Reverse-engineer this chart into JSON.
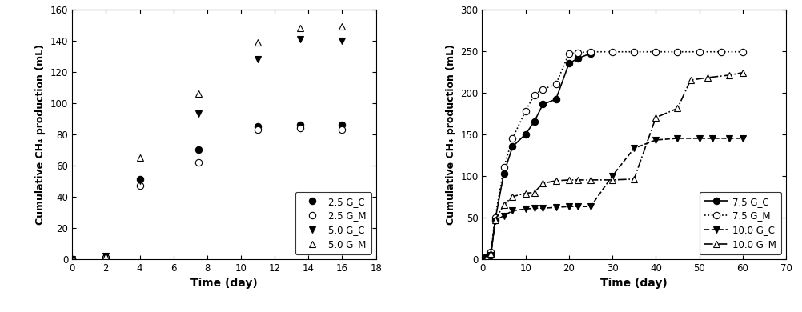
{
  "left": {
    "xlabel": "Time (day)",
    "ylabel": "Cumulative CH₄ production (mL)",
    "xlim": [
      0,
      18
    ],
    "ylim": [
      0,
      160
    ],
    "xticks": [
      0,
      2,
      4,
      6,
      8,
      10,
      12,
      14,
      16,
      18
    ],
    "yticks": [
      0,
      20,
      40,
      60,
      80,
      100,
      120,
      140,
      160
    ],
    "series": [
      {
        "label": "2.5 G_C",
        "marker": "o",
        "fillstyle": "full",
        "linestyle": "-",
        "x": [
          0,
          2,
          4,
          7.5,
          11,
          13.5,
          16
        ],
        "y": [
          0,
          1,
          51,
          70,
          85,
          86,
          86
        ]
      },
      {
        "label": "2.5 G_M",
        "marker": "o",
        "fillstyle": "none",
        "linestyle": "-",
        "x": [
          0,
          2,
          4,
          7.5,
          11,
          13.5,
          16
        ],
        "y": [
          0,
          1,
          47,
          62,
          83,
          84,
          83
        ]
      },
      {
        "label": "5.0 G_C",
        "marker": "v",
        "fillstyle": "full",
        "linestyle": "-",
        "x": [
          0,
          2,
          4,
          7.5,
          11,
          13.5,
          16
        ],
        "y": [
          0,
          2,
          50,
          93,
          128,
          141,
          140
        ]
      },
      {
        "label": "5.0 G_M",
        "marker": "^",
        "fillstyle": "none",
        "linestyle": "-",
        "x": [
          0,
          2,
          4,
          7.5,
          11,
          13.5,
          16
        ],
        "y": [
          0,
          2,
          65,
          106,
          139,
          148,
          149
        ]
      }
    ]
  },
  "right": {
    "xlabel": "Time (day)",
    "ylabel": "Cumulative CH₄ production (mL)",
    "xlim": [
      0,
      70
    ],
    "ylim": [
      0,
      300
    ],
    "xticks": [
      0,
      10,
      20,
      30,
      40,
      50,
      60,
      70
    ],
    "yticks": [
      0,
      50,
      100,
      150,
      200,
      250,
      300
    ],
    "series": [
      {
        "label": "7.5 G_C",
        "marker": "o",
        "fillstyle": "full",
        "linestyle": "-",
        "x": [
          0,
          1,
          2,
          3,
          5,
          7,
          10,
          12,
          14,
          17,
          20,
          22,
          25
        ],
        "y": [
          0,
          2,
          5,
          47,
          103,
          135,
          150,
          165,
          186,
          192,
          235,
          241,
          247
        ]
      },
      {
        "label": "7.5 G_M",
        "marker": "o",
        "fillstyle": "none",
        "linestyle": ":",
        "x": [
          0,
          1,
          2,
          3,
          5,
          7,
          10,
          12,
          14,
          17,
          20,
          22,
          25,
          30,
          35,
          40,
          45,
          50,
          55,
          60
        ],
        "y": [
          0,
          3,
          8,
          50,
          110,
          145,
          178,
          197,
          204,
          210,
          247,
          248,
          249,
          249,
          249,
          249,
          249,
          249,
          249,
          249
        ]
      },
      {
        "label": "10.0 G_C",
        "marker": "v",
        "fillstyle": "full",
        "linestyle": "--",
        "x": [
          0,
          1,
          2,
          3,
          5,
          7,
          10,
          12,
          14,
          17,
          20,
          22,
          25,
          30,
          35,
          40,
          45,
          50,
          53,
          57,
          60
        ],
        "y": [
          0,
          2,
          5,
          46,
          52,
          58,
          60,
          61,
          61,
          62,
          63,
          63,
          63,
          100,
          133,
          143,
          145,
          145,
          145,
          145,
          145
        ]
      },
      {
        "label": "10.0 G_M",
        "marker": "^",
        "fillstyle": "none",
        "linestyle": "-.",
        "x": [
          0,
          1,
          2,
          3,
          5,
          7,
          10,
          12,
          14,
          17,
          20,
          22,
          25,
          30,
          35,
          40,
          45,
          48,
          52,
          57,
          60
        ],
        "y": [
          0,
          2,
          6,
          47,
          65,
          75,
          79,
          80,
          91,
          94,
          95,
          95,
          95,
          95,
          96,
          170,
          181,
          215,
          218,
          221,
          224
        ]
      }
    ]
  }
}
